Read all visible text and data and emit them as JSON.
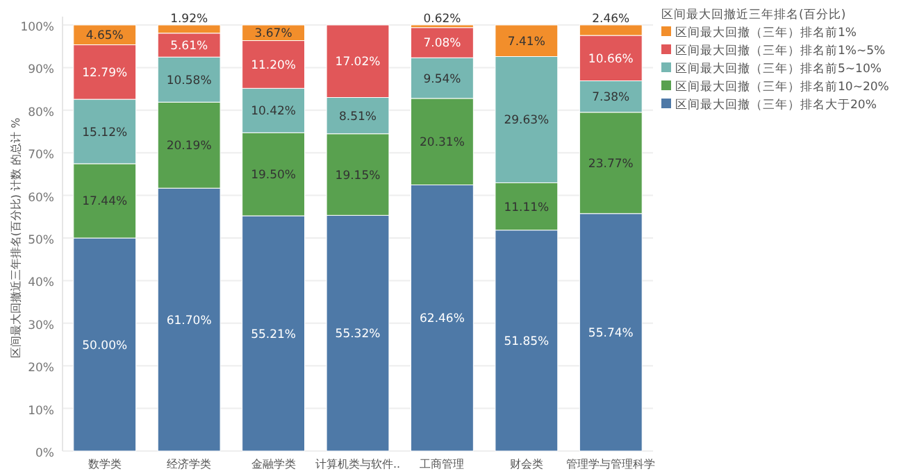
{
  "chart_data": {
    "type": "bar",
    "stacked": true,
    "ylabel": "区间最大回撤近三年排名(百分比) 计数 的总计 %",
    "legend_title": "区间最大回撤近三年排名(百分比)",
    "categories": [
      "数学类",
      "经济学类",
      "金融学类",
      "计算机类与软件..",
      "工商管理",
      "财会类",
      "管理学与管理科学"
    ],
    "series": [
      {
        "name": "区间最大回撤（三年）排名大于20%",
        "color": "#4e79a7",
        "values": [
          50.0,
          61.7,
          55.21,
          55.32,
          62.46,
          51.85,
          55.74
        ],
        "value_labels": [
          "50.00%",
          "61.70%",
          "55.21%",
          "55.32%",
          "62.46%",
          "51.85%",
          "55.74%"
        ]
      },
      {
        "name": "区间最大回撤（三年）排名前10~20%",
        "color": "#59a14f",
        "values": [
          17.44,
          20.19,
          19.5,
          19.15,
          20.31,
          11.11,
          23.77
        ],
        "value_labels": [
          "17.44%",
          "20.19%",
          "19.50%",
          "19.15%",
          "20.31%",
          "11.11%",
          "23.77%"
        ]
      },
      {
        "name": "区间最大回撤（三年）排名前5~10%",
        "color": "#76b7b2",
        "values": [
          15.12,
          10.58,
          10.42,
          8.51,
          9.54,
          29.63,
          7.38
        ],
        "value_labels": [
          "15.12%",
          "10.58%",
          "10.42%",
          "8.51%",
          "9.54%",
          "29.63%",
          "7.38%"
        ]
      },
      {
        "name": "区间最大回撤（三年）排名前1%~5%",
        "color": "#e15759",
        "values": [
          12.79,
          5.61,
          11.2,
          17.02,
          7.08,
          null,
          10.66
        ],
        "value_labels": [
          "12.79%",
          "5.61%",
          "11.20%",
          "17.02%",
          "7.08%",
          null,
          "10.66%"
        ]
      },
      {
        "name": "区间最大回撤（三年）排名前1%",
        "color": "#f28e2b",
        "values": [
          4.65,
          1.92,
          3.67,
          null,
          0.62,
          7.41,
          2.46
        ],
        "value_labels": [
          "4.65%",
          "1.92%",
          "3.67%",
          null,
          "0.62%",
          "7.41%",
          "2.46%"
        ]
      }
    ],
    "ylim": [
      0,
      100
    ],
    "yticks": [
      {
        "value": 0,
        "label": "0%"
      },
      {
        "value": 10,
        "label": "10%"
      },
      {
        "value": 20,
        "label": "20%"
      },
      {
        "value": 30,
        "label": "30%"
      },
      {
        "value": 40,
        "label": "40%"
      },
      {
        "value": 50,
        "label": "50%"
      },
      {
        "value": 60,
        "label": "60%"
      },
      {
        "value": 70,
        "label": "70%"
      },
      {
        "value": 80,
        "label": "80%"
      },
      {
        "value": 90,
        "label": "90%"
      },
      {
        "value": 100,
        "label": "100%"
      }
    ],
    "grid": "y",
    "legend": "top right"
  }
}
